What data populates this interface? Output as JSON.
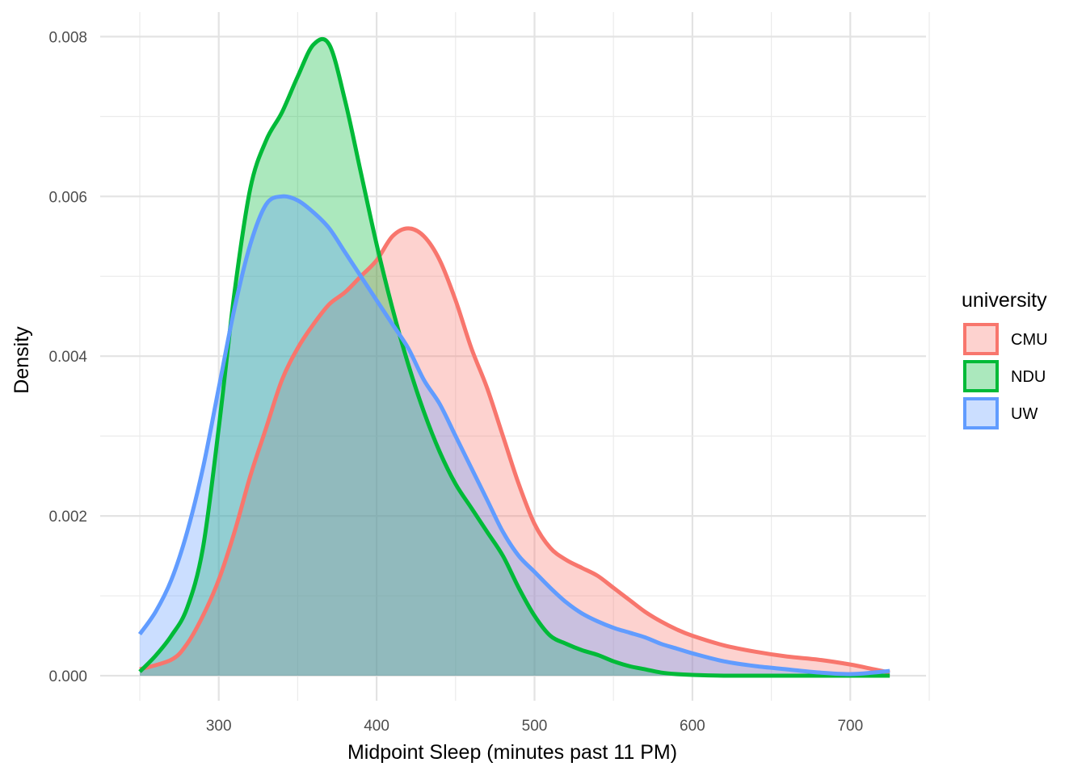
{
  "chart_data": {
    "type": "area",
    "xlabel": "Midpoint Sleep (minutes past 11 PM)",
    "ylabel": "Density",
    "xlim": [
      247,
      725
    ],
    "ylim": [
      0,
      0.008
    ],
    "x_ticks": [
      300,
      400,
      500,
      600,
      700
    ],
    "x_tick_labels": [
      "300",
      "400",
      "500",
      "600",
      "700"
    ],
    "y_ticks": [
      0,
      0.002,
      0.004,
      0.006,
      0.008
    ],
    "y_tick_labels": [
      "0.000",
      "0.002",
      "0.004",
      "0.006",
      "0.008"
    ],
    "grid": true,
    "legend": {
      "title": "university",
      "position": "right"
    },
    "series": [
      {
        "name": "CMU",
        "color": "#F8766D",
        "x": [
          250,
          270,
          280,
          290,
          300,
          310,
          320,
          330,
          340,
          350,
          360,
          370,
          380,
          390,
          400,
          410,
          420,
          430,
          440,
          450,
          460,
          470,
          480,
          490,
          500,
          510,
          520,
          530,
          540,
          550,
          560,
          570,
          580,
          590,
          600,
          620,
          640,
          660,
          680,
          700,
          715,
          725
        ],
        "y": [
          8e-05,
          0.0002,
          0.0004,
          0.00075,
          0.0012,
          0.0018,
          0.0025,
          0.0031,
          0.0037,
          0.0041,
          0.0044,
          0.00465,
          0.0048,
          0.005,
          0.0052,
          0.0055,
          0.0056,
          0.0055,
          0.0052,
          0.0047,
          0.0041,
          0.0036,
          0.003,
          0.0024,
          0.0019,
          0.0016,
          0.00145,
          0.00135,
          0.00125,
          0.0011,
          0.00095,
          0.0008,
          0.00068,
          0.00058,
          0.0005,
          0.00038,
          0.0003,
          0.00024,
          0.0002,
          0.00014,
          8e-05,
          4e-05
        ]
      },
      {
        "name": "NDU",
        "color": "#00BA38",
        "x": [
          250,
          260,
          270,
          280,
          290,
          300,
          310,
          320,
          330,
          340,
          350,
          360,
          370,
          380,
          390,
          400,
          410,
          420,
          430,
          440,
          450,
          460,
          470,
          480,
          490,
          500,
          510,
          520,
          530,
          540,
          550,
          560,
          570,
          580,
          590,
          600,
          620,
          650,
          700,
          725
        ],
        "y": [
          5e-05,
          0.00025,
          0.0005,
          0.00085,
          0.0016,
          0.0031,
          0.0048,
          0.0061,
          0.0067,
          0.00705,
          0.0075,
          0.0079,
          0.0079,
          0.0072,
          0.0063,
          0.0054,
          0.0046,
          0.0039,
          0.0033,
          0.0028,
          0.0024,
          0.0021,
          0.0018,
          0.0015,
          0.0011,
          0.00075,
          0.0005,
          0.0004,
          0.00032,
          0.00026,
          0.00018,
          0.00012,
          8e-05,
          4e-05,
          2e-05,
          1e-05,
          0,
          0,
          0,
          0
        ]
      },
      {
        "name": "UW",
        "color": "#619CFF",
        "x": [
          250,
          260,
          270,
          280,
          290,
          300,
          310,
          320,
          330,
          340,
          350,
          360,
          370,
          380,
          390,
          400,
          410,
          420,
          430,
          440,
          450,
          460,
          470,
          480,
          490,
          500,
          510,
          520,
          530,
          540,
          550,
          560,
          570,
          580,
          590,
          600,
          620,
          640,
          660,
          680,
          700,
          715,
          725
        ],
        "y": [
          0.00052,
          0.0008,
          0.0012,
          0.0018,
          0.0026,
          0.0036,
          0.0046,
          0.0054,
          0.0059,
          0.006,
          0.00595,
          0.0058,
          0.0056,
          0.0053,
          0.005,
          0.0047,
          0.0044,
          0.0041,
          0.0037,
          0.0034,
          0.003,
          0.0026,
          0.0022,
          0.0018,
          0.0015,
          0.0013,
          0.0011,
          0.00092,
          0.00078,
          0.00068,
          0.0006,
          0.00054,
          0.00048,
          0.0004,
          0.00034,
          0.00028,
          0.00018,
          0.00012,
          8e-05,
          4e-05,
          2e-05,
          4e-05,
          6e-05
        ]
      }
    ]
  }
}
